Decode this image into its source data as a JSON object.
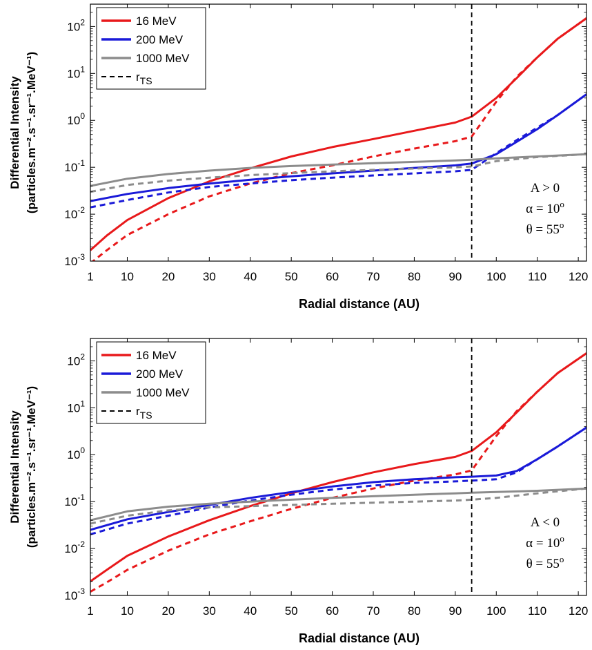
{
  "chart_data": [
    {
      "type": "line",
      "xlabel": "Radial distance (AU)",
      "ylabel_line1": "Differential Intensity",
      "ylabel_line2": "(particles.m⁻².s⁻¹.sr⁻¹.MeV⁻¹)",
      "xlim": [
        1,
        122
      ],
      "ylim": [
        0.001,
        300
      ],
      "yscale": "log",
      "xticks": [
        "1",
        "10",
        "20",
        "30",
        "40",
        "50",
        "60",
        "70",
        "80",
        "90",
        "100",
        "110",
        "120"
      ],
      "yticks": [
        {
          "base": "10",
          "exp": "-3"
        },
        {
          "base": "10",
          "exp": "-2"
        },
        {
          "base": "10",
          "exp": "-1"
        },
        {
          "base": "10",
          "exp": "0"
        },
        {
          "base": "10",
          "exp": "1"
        },
        {
          "base": "10",
          "exp": "2"
        }
      ],
      "grid": false,
      "legend_position": "top-left",
      "legend": [
        {
          "label": "16 MeV",
          "color": "#e8191b",
          "style": "solid"
        },
        {
          "label": "200 MeV",
          "color": "#1a1ad8",
          "style": "solid"
        },
        {
          "label": "1000 MeV",
          "color": "#8c8c8c",
          "style": "solid"
        },
        {
          "label": "r",
          "sub": "TS",
          "color": "#000000",
          "style": "dashed"
        }
      ],
      "annotation": {
        "line1": "A > 0",
        "line2": "α = 10",
        "line2_sup": "o",
        "line3": "θ = 55",
        "line3_sup": "o"
      },
      "termination_shock_x": 94,
      "series": [
        {
          "name": "16 MeV",
          "color": "#e8191b",
          "dashed": false,
          "x": [
            1,
            5,
            10,
            20,
            30,
            40,
            50,
            60,
            70,
            80,
            90,
            94,
            100,
            105,
            110,
            115,
            122
          ],
          "y": [
            0.0017,
            0.0035,
            0.0075,
            0.022,
            0.05,
            0.095,
            0.17,
            0.27,
            0.4,
            0.6,
            0.9,
            1.2,
            3.0,
            8.0,
            22,
            55,
            150
          ]
        },
        {
          "name": "16 MeV",
          "color": "#e8191b",
          "dashed": true,
          "x": [
            1,
            5,
            10,
            20,
            30,
            40,
            50,
            60,
            70,
            80,
            90,
            94,
            100,
            105,
            110,
            115,
            122
          ],
          "y": [
            0.0009,
            0.0017,
            0.0036,
            0.01,
            0.024,
            0.045,
            0.075,
            0.11,
            0.17,
            0.25,
            0.36,
            0.45,
            2.5,
            8.5,
            22,
            55,
            150
          ]
        },
        {
          "name": "200 MeV",
          "color": "#1a1ad8",
          "dashed": false,
          "x": [
            1,
            10,
            20,
            30,
            40,
            50,
            60,
            70,
            80,
            90,
            94,
            100,
            105,
            110,
            115,
            122
          ],
          "y": [
            0.019,
            0.027,
            0.036,
            0.045,
            0.054,
            0.064,
            0.074,
            0.085,
            0.097,
            0.11,
            0.12,
            0.19,
            0.35,
            0.65,
            1.3,
            3.6
          ]
        },
        {
          "name": "200 MeV",
          "color": "#1a1ad8",
          "dashed": true,
          "x": [
            1,
            10,
            20,
            30,
            40,
            50,
            60,
            70,
            80,
            90,
            94,
            100,
            105,
            110,
            115,
            122
          ],
          "y": [
            0.014,
            0.02,
            0.029,
            0.038,
            0.045,
            0.053,
            0.06,
            0.067,
            0.074,
            0.082,
            0.088,
            0.2,
            0.38,
            0.7,
            1.3,
            3.6
          ]
        },
        {
          "name": "1000 MeV",
          "color": "#8c8c8c",
          "dashed": false,
          "x": [
            1,
            10,
            20,
            30,
            40,
            50,
            60,
            70,
            80,
            90,
            94,
            100,
            110,
            122
          ],
          "y": [
            0.04,
            0.057,
            0.072,
            0.085,
            0.097,
            0.106,
            0.114,
            0.122,
            0.13,
            0.14,
            0.145,
            0.155,
            0.17,
            0.19
          ]
        },
        {
          "name": "1000 MeV",
          "color": "#8c8c8c",
          "dashed": true,
          "x": [
            1,
            10,
            20,
            30,
            40,
            50,
            60,
            70,
            80,
            90,
            94,
            100,
            110,
            122
          ],
          "y": [
            0.03,
            0.042,
            0.052,
            0.06,
            0.068,
            0.075,
            0.082,
            0.088,
            0.094,
            0.1,
            0.104,
            0.135,
            0.165,
            0.19
          ]
        }
      ]
    },
    {
      "type": "line",
      "xlabel": "Radial distance (AU)",
      "ylabel_line1": "Differential Intensity",
      "ylabel_line2": "(particles.m⁻².s⁻¹.sr⁻¹.MeV⁻¹)",
      "xlim": [
        1,
        122
      ],
      "ylim": [
        0.001,
        300
      ],
      "yscale": "log",
      "xticks": [
        "1",
        "10",
        "20",
        "30",
        "40",
        "50",
        "60",
        "70",
        "80",
        "90",
        "100",
        "110",
        "120"
      ],
      "yticks": [
        {
          "base": "10",
          "exp": "-3"
        },
        {
          "base": "10",
          "exp": "-2"
        },
        {
          "base": "10",
          "exp": "-1"
        },
        {
          "base": "10",
          "exp": "0"
        },
        {
          "base": "10",
          "exp": "1"
        },
        {
          "base": "10",
          "exp": "2"
        }
      ],
      "grid": false,
      "legend_position": "top-left",
      "legend": [
        {
          "label": "16 MeV",
          "color": "#e8191b",
          "style": "solid"
        },
        {
          "label": "200 MeV",
          "color": "#1a1ad8",
          "style": "solid"
        },
        {
          "label": "1000 MeV",
          "color": "#8c8c8c",
          "style": "solid"
        },
        {
          "label": "r",
          "sub": "TS",
          "color": "#000000",
          "style": "dashed"
        }
      ],
      "annotation": {
        "line1": "A < 0",
        "line2": "α = 10",
        "line2_sup": "o",
        "line3": "θ = 55",
        "line3_sup": "o"
      },
      "termination_shock_x": 94,
      "series": [
        {
          "name": "16 MeV",
          "color": "#e8191b",
          "dashed": false,
          "x": [
            1,
            5,
            10,
            20,
            30,
            40,
            50,
            60,
            70,
            80,
            90,
            94,
            100,
            105,
            110,
            115,
            122
          ],
          "y": [
            0.002,
            0.0035,
            0.007,
            0.018,
            0.04,
            0.08,
            0.15,
            0.26,
            0.42,
            0.63,
            0.9,
            1.2,
            3.0,
            8.0,
            22,
            55,
            145
          ]
        },
        {
          "name": "16 MeV",
          "color": "#e8191b",
          "dashed": true,
          "x": [
            1,
            5,
            10,
            20,
            30,
            40,
            50,
            60,
            70,
            80,
            90,
            94,
            100,
            105,
            110,
            115,
            122
          ],
          "y": [
            0.0012,
            0.0019,
            0.0035,
            0.009,
            0.02,
            0.038,
            0.07,
            0.12,
            0.19,
            0.28,
            0.38,
            0.46,
            2.5,
            8.5,
            22,
            55,
            145
          ]
        },
        {
          "name": "200 MeV",
          "color": "#1a1ad8",
          "dashed": false,
          "x": [
            1,
            10,
            20,
            30,
            40,
            50,
            60,
            70,
            80,
            90,
            94,
            100,
            105,
            110,
            115,
            122
          ],
          "y": [
            0.025,
            0.042,
            0.06,
            0.085,
            0.12,
            0.16,
            0.21,
            0.26,
            0.3,
            0.33,
            0.34,
            0.36,
            0.45,
            0.8,
            1.5,
            3.8
          ]
        },
        {
          "name": "200 MeV",
          "color": "#1a1ad8",
          "dashed": true,
          "x": [
            1,
            10,
            20,
            30,
            40,
            50,
            60,
            70,
            80,
            90,
            94,
            100,
            105,
            110,
            115,
            122
          ],
          "y": [
            0.02,
            0.034,
            0.05,
            0.075,
            0.105,
            0.14,
            0.18,
            0.22,
            0.25,
            0.27,
            0.28,
            0.3,
            0.42,
            0.8,
            1.5,
            3.8
          ]
        },
        {
          "name": "1000 MeV",
          "color": "#8c8c8c",
          "dashed": false,
          "x": [
            1,
            10,
            20,
            30,
            40,
            50,
            60,
            70,
            80,
            90,
            94,
            100,
            110,
            122
          ],
          "y": [
            0.04,
            0.062,
            0.078,
            0.09,
            0.1,
            0.11,
            0.12,
            0.13,
            0.14,
            0.15,
            0.155,
            0.16,
            0.17,
            0.19
          ]
        },
        {
          "name": "1000 MeV",
          "color": "#8c8c8c",
          "dashed": true,
          "x": [
            1,
            10,
            20,
            30,
            40,
            50,
            60,
            70,
            80,
            90,
            94,
            100,
            110,
            122
          ],
          "y": [
            0.034,
            0.05,
            0.065,
            0.075,
            0.08,
            0.085,
            0.09,
            0.095,
            0.1,
            0.105,
            0.11,
            0.12,
            0.15,
            0.19
          ]
        }
      ]
    }
  ]
}
